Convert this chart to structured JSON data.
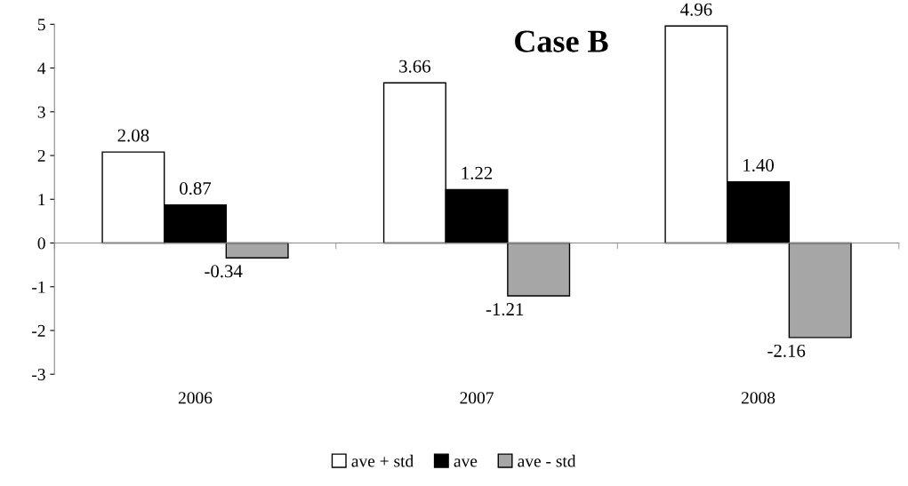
{
  "chart_data": {
    "type": "bar",
    "title": "Case B",
    "categories": [
      "2006",
      "2007",
      "2008"
    ],
    "series": [
      {
        "name": "ave + std",
        "color": "#ffffff",
        "values": [
          2.08,
          3.66,
          4.96
        ],
        "value_labels": [
          "2.08",
          "3.66",
          "4.96"
        ]
      },
      {
        "name": "ave",
        "color": "#000000",
        "values": [
          0.87,
          1.22,
          1.4
        ],
        "value_labels": [
          "0.87",
          "1.22",
          "1.40"
        ]
      },
      {
        "name": "ave - std",
        "color": "#a6a6a6",
        "values": [
          -0.34,
          -1.21,
          -2.16
        ],
        "value_labels": [
          "-0.34",
          "-1.21",
          "-2.16"
        ]
      }
    ],
    "ylim": [
      -3,
      5
    ],
    "yticks": [
      -3,
      -2,
      -1,
      0,
      1,
      2,
      3,
      4,
      5
    ],
    "legend": "bottom"
  }
}
